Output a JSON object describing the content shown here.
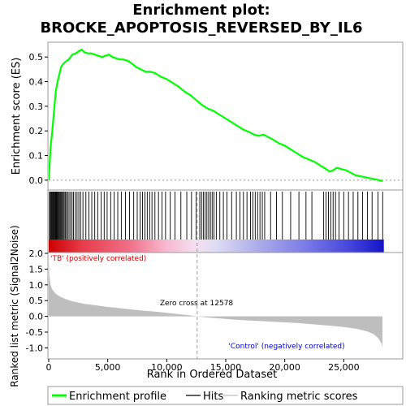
{
  "chart_data": {
    "type": "line",
    "title_line1": "Enrichment plot:",
    "title_line2": "BROCKE_APOPTOSIS_REVERSED_BY_IL6",
    "es_panel": {
      "ylabel": "Enrichment score (ES)",
      "ylim": [
        -0.04,
        0.56
      ],
      "yticks": [
        0.0,
        0.1,
        0.2,
        0.3,
        0.4,
        0.5
      ],
      "line_color": "#00ff00",
      "points": [
        [
          0,
          0.0
        ],
        [
          150,
          0.13
        ],
        [
          300,
          0.2
        ],
        [
          450,
          0.28
        ],
        [
          600,
          0.36
        ],
        [
          750,
          0.4
        ],
        [
          900,
          0.43
        ],
        [
          1050,
          0.46
        ],
        [
          1200,
          0.47
        ],
        [
          1400,
          0.48
        ],
        [
          1700,
          0.49
        ],
        [
          2000,
          0.51
        ],
        [
          2300,
          0.515
        ],
        [
          2600,
          0.525
        ],
        [
          2800,
          0.53
        ],
        [
          3000,
          0.52
        ],
        [
          3300,
          0.515
        ],
        [
          3600,
          0.515
        ],
        [
          3900,
          0.51
        ],
        [
          4200,
          0.505
        ],
        [
          4500,
          0.5
        ],
        [
          4800,
          0.505
        ],
        [
          5100,
          0.51
        ],
        [
          5400,
          0.5
        ],
        [
          5700,
          0.495
        ],
        [
          6000,
          0.49
        ],
        [
          6300,
          0.49
        ],
        [
          6700,
          0.485
        ],
        [
          7000,
          0.475
        ],
        [
          7400,
          0.46
        ],
        [
          7800,
          0.45
        ],
        [
          8200,
          0.44
        ],
        [
          8600,
          0.44
        ],
        [
          9000,
          0.435
        ],
        [
          9500,
          0.42
        ],
        [
          10000,
          0.41
        ],
        [
          10500,
          0.395
        ],
        [
          11000,
          0.38
        ],
        [
          11500,
          0.36
        ],
        [
          12000,
          0.345
        ],
        [
          12500,
          0.325
        ],
        [
          13000,
          0.305
        ],
        [
          13500,
          0.29
        ],
        [
          14000,
          0.28
        ],
        [
          14500,
          0.265
        ],
        [
          15000,
          0.25
        ],
        [
          15500,
          0.235
        ],
        [
          16000,
          0.22
        ],
        [
          16500,
          0.205
        ],
        [
          17000,
          0.195
        ],
        [
          17400,
          0.185
        ],
        [
          17800,
          0.18
        ],
        [
          18200,
          0.185
        ],
        [
          18600,
          0.175
        ],
        [
          19000,
          0.165
        ],
        [
          19500,
          0.15
        ],
        [
          20000,
          0.14
        ],
        [
          20500,
          0.125
        ],
        [
          21000,
          0.11
        ],
        [
          21500,
          0.095
        ],
        [
          22000,
          0.085
        ],
        [
          22500,
          0.075
        ],
        [
          23000,
          0.06
        ],
        [
          23500,
          0.045
        ],
        [
          23800,
          0.035
        ],
        [
          24100,
          0.04
        ],
        [
          24400,
          0.05
        ],
        [
          24800,
          0.045
        ],
        [
          25200,
          0.04
        ],
        [
          25600,
          0.03
        ],
        [
          26000,
          0.02
        ],
        [
          26500,
          0.015
        ],
        [
          27000,
          0.01
        ],
        [
          27500,
          0.005
        ],
        [
          28000,
          0.0
        ],
        [
          28400,
          -0.005
        ]
      ]
    },
    "hits_panel": {
      "hit_positions": [
        60,
        130,
        200,
        260,
        320,
        380,
        440,
        500,
        560,
        620,
        680,
        740,
        800,
        870,
        940,
        1010,
        1080,
        1150,
        1230,
        1310,
        1400,
        1500,
        1600,
        1720,
        1850,
        1980,
        2100,
        2250,
        2400,
        2550,
        2700,
        2900,
        3150,
        3400,
        3650,
        3900,
        4150,
        4450,
        4700,
        4950,
        5250,
        5550,
        5850,
        6150,
        6500,
        6850,
        7200,
        7500,
        7750,
        7950,
        8150,
        8350,
        8550,
        8750,
        9000,
        9300,
        9600,
        9900,
        10300,
        10700,
        11200,
        11700,
        12100,
        12500,
        12800,
        12950,
        13100,
        13250,
        13400,
        13550,
        13700,
        13850,
        14000,
        14200,
        14500,
        14800,
        15100,
        15500,
        15900,
        16200,
        16500,
        16800,
        17100,
        17300,
        17500,
        17700,
        17900,
        18100,
        18300,
        18800,
        19300,
        19800,
        20500,
        21200,
        21800,
        22300,
        23300,
        23500,
        23700,
        23900,
        24100,
        24300,
        24600,
        25000,
        25400,
        25800,
        26200,
        26600,
        27000,
        27400,
        27900,
        28300
      ],
      "gradient_stops": [
        {
          "pos": 0.0,
          "color": "#cc0000"
        },
        {
          "pos": 0.1,
          "color": "#e83c4a"
        },
        {
          "pos": 0.24,
          "color": "#f06f88"
        },
        {
          "pos": 0.35,
          "color": "#f8b8d0"
        },
        {
          "pos": 0.44,
          "color": "#f4e0f0"
        },
        {
          "pos": 0.5,
          "color": "#dcdcf4"
        },
        {
          "pos": 0.63,
          "color": "#aaaaea"
        },
        {
          "pos": 0.76,
          "color": "#7d7de8"
        },
        {
          "pos": 0.9,
          "color": "#4444dd"
        },
        {
          "pos": 1.0,
          "color": "#1414c8"
        }
      ]
    },
    "metric_panel": {
      "ylabel": "Ranked list metric (Signal2Noise)",
      "xlabel": "Rank in Ordered Dataset",
      "xlim": [
        0,
        30000
      ],
      "xticks": [
        0,
        5000,
        10000,
        15000,
        20000,
        25000
      ],
      "xtick_labels": [
        "0",
        "5,000",
        "10,000",
        "15,000",
        "20,000",
        "25,000"
      ],
      "ylim": [
        -1.35,
        2.0
      ],
      "yticks": [
        -1.0,
        -0.5,
        0.0,
        0.5,
        1.0,
        1.5,
        2.0
      ],
      "ytick_labels": [
        "-1.0",
        "-0.5",
        "0.0",
        "0.5",
        "1.0",
        "1.5",
        "2.0"
      ],
      "fill_color": "#bebebe",
      "zero_cross": 12578,
      "zero_cross_label": "Zero cross at 12578",
      "pos_label": "'TB' (positively correlated)",
      "neg_label": "'Control' (negatively correlated)",
      "pos_label_color": "#cc0000",
      "neg_label_color": "#0000cc",
      "metric_points": [
        [
          0,
          1.9
        ],
        [
          50,
          1.3
        ],
        [
          150,
          1.0
        ],
        [
          300,
          0.85
        ],
        [
          600,
          0.72
        ],
        [
          1000,
          0.62
        ],
        [
          1500,
          0.54
        ],
        [
          2000,
          0.48
        ],
        [
          3000,
          0.4
        ],
        [
          4000,
          0.35
        ],
        [
          5000,
          0.3
        ],
        [
          6000,
          0.26
        ],
        [
          7000,
          0.22
        ],
        [
          8000,
          0.18
        ],
        [
          9000,
          0.15
        ],
        [
          10000,
          0.11
        ],
        [
          11000,
          0.07
        ],
        [
          12000,
          0.03
        ],
        [
          12578,
          0.0
        ],
        [
          13000,
          -0.02
        ],
        [
          14000,
          -0.05
        ],
        [
          15000,
          -0.08
        ],
        [
          16000,
          -0.11
        ],
        [
          17000,
          -0.13
        ],
        [
          18000,
          -0.15
        ],
        [
          19000,
          -0.17
        ],
        [
          20000,
          -0.19
        ],
        [
          21000,
          -0.21
        ],
        [
          22000,
          -0.24
        ],
        [
          23000,
          -0.27
        ],
        [
          24000,
          -0.3
        ],
        [
          25000,
          -0.34
        ],
        [
          26000,
          -0.39
        ],
        [
          26500,
          -0.43
        ],
        [
          27000,
          -0.48
        ],
        [
          27500,
          -0.56
        ],
        [
          27900,
          -0.68
        ],
        [
          28200,
          -0.85
        ],
        [
          28350,
          -1.1
        ],
        [
          28400,
          -1.25
        ]
      ],
      "n_genes": 28400
    },
    "legend": [
      {
        "label": "Enrichment profile",
        "color": "#00ff00",
        "style": "thick-line"
      },
      {
        "label": "Hits",
        "color": "#000000",
        "style": "line"
      },
      {
        "label": "Ranking metric scores",
        "color": "#bebebe",
        "style": "line"
      }
    ]
  }
}
